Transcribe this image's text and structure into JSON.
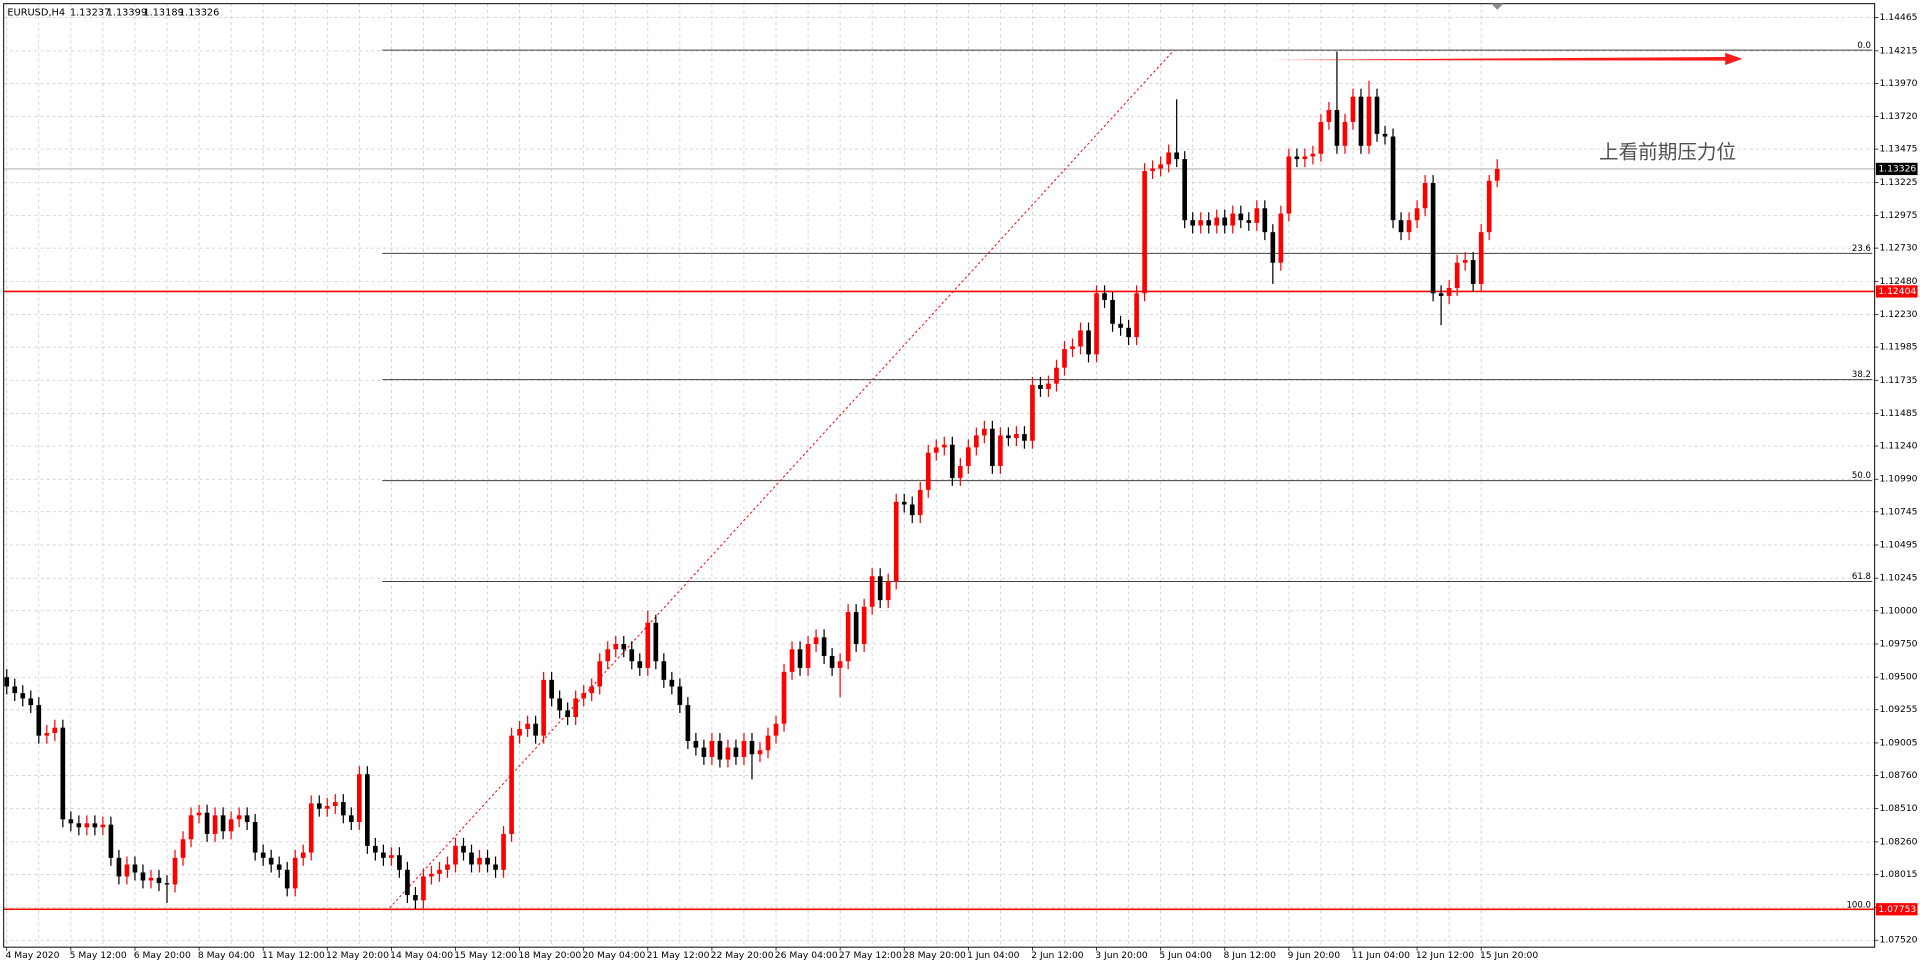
{
  "chart_data": {
    "type": "candlestick",
    "symbol": "EURUSD,H4",
    "annotation": "上看前期压力位",
    "up_color": "#ff0000",
    "down_color": "#000000",
    "grid": true,
    "ylim": [
      1.0744,
      1.1457
    ],
    "yticks": [
      1.14465,
      1.14215,
      {
        "value": 1.1397,
        "label": "1.13970"
      },
      {
        "value": 1.1372,
        "label": "1.13720"
      },
      1.13475,
      1.13225,
      1.12975,
      {
        "value": 1.1273,
        "label": "1.12730"
      },
      {
        "value": 1.1248,
        "label": "1.12480"
      },
      {
        "value": 1.1223,
        "label": "1.12230"
      },
      1.11985,
      1.11735,
      1.11485,
      {
        "value": 1.1124,
        "label": "1.11240"
      },
      {
        "value": 1.1099,
        "label": "1.10990"
      },
      1.10745,
      1.10495,
      1.10245,
      {
        "value": 1.1,
        "label": "1.10000"
      },
      {
        "value": 1.0975,
        "label": "1.09750"
      },
      {
        "value": 1.095,
        "label": "1.09500"
      },
      1.09255,
      1.09005,
      {
        "value": 1.0876,
        "label": "1.08760"
      },
      {
        "value": 1.0851,
        "label": "1.08510"
      },
      {
        "value": 1.0826,
        "label": "1.08260"
      },
      1.08015,
      1.07765,
      {
        "value": 1.0752,
        "label": "1.07520"
      }
    ],
    "fib_levels": [
      {
        "value": 1.1422,
        "label": "0.0"
      },
      {
        "value": 1.1269,
        "label": "23.6"
      },
      {
        "value": 1.1174,
        "label": "38.2"
      },
      {
        "value": 1.1098,
        "label": "50.0"
      },
      {
        "value": 1.1022,
        "label": "61.8"
      },
      {
        "value": 1.0775,
        "label": "100.0"
      }
    ],
    "fib_color": "#404040",
    "red_lines": [
      1.12404,
      1.07753
    ],
    "red_line_color": "#ff0000",
    "categories": [
      "4 May 2020",
      null,
      null,
      null,
      null,
      null,
      null,
      null,
      "5 May 12:00",
      null,
      null,
      null,
      null,
      null,
      null,
      null,
      "6 May 20:00",
      null,
      null,
      null,
      null,
      null,
      null,
      null,
      "8 May 04:00",
      null,
      null,
      null,
      null,
      null,
      null,
      null,
      "11 May 12:00",
      null,
      null,
      null,
      null,
      null,
      null,
      null,
      "12 May 20:00",
      null,
      null,
      null,
      null,
      null,
      null,
      null,
      "14 May 04:00",
      null,
      null,
      null,
      null,
      null,
      null,
      null,
      "15 May 12:00",
      null,
      null,
      null,
      null,
      null,
      null,
      null,
      "18 May 20:00",
      null,
      null,
      null,
      null,
      null,
      null,
      null,
      "20 May 04:00",
      null,
      null,
      null,
      null,
      null,
      null,
      null,
      "21 May 12:00",
      null,
      null,
      null,
      null,
      null,
      null,
      null,
      "22 May 20:00",
      null,
      null,
      null,
      null,
      null,
      null,
      null,
      "26 May 04:00",
      null,
      null,
      null,
      null,
      null,
      null,
      null,
      "27 May 12:00",
      null,
      null,
      null,
      null,
      null,
      null,
      null,
      "28 May 20:00",
      null,
      null,
      null,
      null,
      null,
      null,
      null,
      "1 Jun 04:00",
      null,
      null,
      null,
      null,
      null,
      null,
      null,
      "2 Jun 12:00",
      null,
      null,
      null,
      null,
      null,
      null,
      null,
      "3 Jun 20:00",
      null,
      null,
      null,
      null,
      null,
      null,
      null,
      "5 Jun 04:00",
      null,
      null,
      null,
      null,
      null,
      null,
      null,
      "8 Jun 12:00",
      null,
      null,
      null,
      null,
      null,
      null,
      null,
      "9 Jun 20:00",
      null,
      null,
      null,
      null,
      null,
      null,
      null,
      "11 Jun 04:00",
      null,
      null,
      null,
      null,
      null,
      null,
      null,
      "12 Jun 12:00",
      null,
      null,
      null,
      null,
      null,
      null,
      null,
      "15 Jun 20:00",
      null,
      null
    ],
    "open": [
      1.095,
      1.0943,
      1.0938,
      1.0934,
      1.0929,
      1.0906,
      1.0908,
      1.0912,
      1.0843,
      1.084,
      1.0837,
      1.084,
      1.0837,
      1.0839,
      1.0814,
      1.08,
      1.0809,
      1.0803,
      1.0797,
      1.0799,
      1.0795,
      1.0794,
      1.0814,
      1.0828,
      1.0846,
      1.0848,
      1.0832,
      1.0846,
      1.0834,
      1.0843,
      1.0846,
      1.0841,
      1.0818,
      1.0814,
      1.0809,
      1.0805,
      1.0791,
      1.0814,
      1.0818,
      1.0855,
      1.0851,
      1.0853,
      1.0856,
      1.0846,
      1.0841,
      1.0877,
      1.0823,
      1.0818,
      1.0814,
      1.0816,
      1.0805,
      1.0786,
      1.0782,
      1.08,
      1.0802,
      1.0805,
      1.0809,
      1.0823,
      1.0818,
      1.0809,
      1.0814,
      1.0809,
      1.0805,
      1.0832,
      1.0906,
      1.0911,
      1.0915,
      1.0906,
      1.0948,
      1.0934,
      1.0925,
      1.092,
      1.0934,
      1.0938,
      1.0943,
      1.0962,
      1.0971,
      1.0975,
      1.0971,
      1.0962,
      1.0957,
      1.0991,
      1.0962,
      1.0948,
      1.0943,
      1.0929,
      1.0902,
      1.0897,
      1.089,
      1.0902,
      1.0888,
      1.0897,
      1.089,
      1.0902,
      1.0892,
      1.0895,
      1.0906,
      1.0915,
      1.0954,
      1.0971,
      1.0957,
      1.0975,
      1.098,
      1.0966,
      1.0957,
      1.0962,
      1.0999,
      1.0975,
      1.1003,
      1.1026,
      1.1008,
      1.1022,
      1.1082,
      1.108,
      1.1072,
      1.1091,
      1.1119,
      1.1123,
      1.1125,
      1.11,
      1.1109,
      1.1123,
      1.1132,
      1.1137,
      1.1109,
      1.1132,
      1.113,
      1.1133,
      1.1128,
      1.117,
      1.1167,
      1.1171,
      1.1183,
      1.1197,
      1.1199,
      1.1211,
      1.1193,
      1.1239,
      1.1234,
      1.1216,
      1.1213,
      1.1206,
      1.1239,
      1.1331,
      1.1333,
      1.1336,
      1.1345,
      1.134,
      1.1294,
      1.129,
      1.1294,
      1.129,
      1.1296,
      1.129,
      1.1299,
      1.1294,
      1.1292,
      1.1303,
      1.1285,
      1.1262,
      1.1299,
      1.1342,
      1.134,
      1.1342,
      1.1344,
      1.1368,
      1.1377,
      1.135,
      1.1368,
      1.1387,
      1.135,
      1.1387,
      1.1359,
      1.1357,
      1.1294,
      1.1285,
      1.1294,
      1.1303,
      1.1322,
      1.1239,
      1.1237,
      1.1243,
      1.1262,
      1.1264,
      1.1246,
      1.1285,
      1.13237
    ],
    "high": [
      1.0956,
      1.0949,
      1.0944,
      1.094,
      1.0935,
      1.0914,
      1.0918,
      1.0918,
      1.0849,
      1.0846,
      1.0846,
      1.0846,
      1.0845,
      1.0845,
      1.082,
      1.0815,
      1.0815,
      1.0809,
      1.0805,
      1.0805,
      1.0801,
      1.082,
      1.0834,
      1.0852,
      1.0854,
      1.0854,
      1.0852,
      1.0852,
      1.0849,
      1.0852,
      1.0852,
      1.0847,
      1.0824,
      1.082,
      1.0815,
      1.0811,
      1.082,
      1.0824,
      1.0861,
      1.0861,
      1.0859,
      1.0862,
      1.0862,
      1.0852,
      1.0883,
      1.0883,
      1.0829,
      1.0824,
      1.0822,
      1.0822,
      1.0811,
      1.0792,
      1.0806,
      1.0808,
      1.0811,
      1.0815,
      1.0829,
      1.0829,
      1.0824,
      1.082,
      1.082,
      1.0815,
      1.0838,
      1.0912,
      1.0917,
      1.0921,
      1.0921,
      1.0954,
      1.0954,
      1.094,
      1.0931,
      1.094,
      1.0944,
      1.0949,
      1.0968,
      1.0977,
      1.0981,
      1.0981,
      1.0977,
      1.0968,
      1.1,
      1.0997,
      1.0968,
      1.0954,
      1.0949,
      1.0935,
      1.0908,
      1.0903,
      1.0908,
      1.0908,
      1.0903,
      1.0903,
      1.0908,
      1.0908,
      1.0901,
      1.0912,
      1.0921,
      1.096,
      1.0977,
      1.0977,
      1.0981,
      1.0986,
      1.0986,
      1.0972,
      1.0968,
      1.1005,
      1.1005,
      1.1009,
      1.1032,
      1.1032,
      1.1028,
      1.1088,
      1.1088,
      1.1086,
      1.1097,
      1.1125,
      1.1129,
      1.1131,
      1.1131,
      1.1115,
      1.1129,
      1.1138,
      1.1143,
      1.1143,
      1.1138,
      1.1138,
      1.1139,
      1.1139,
      1.1176,
      1.1176,
      1.1177,
      1.1189,
      1.1203,
      1.1205,
      1.1217,
      1.1217,
      1.1245,
      1.1245,
      1.124,
      1.1222,
      1.1219,
      1.1245,
      1.1337,
      1.1339,
      1.1342,
      1.1351,
      1.1385,
      1.1346,
      1.13,
      1.13,
      1.13,
      1.1302,
      1.1302,
      1.1305,
      1.1305,
      1.13,
      1.1309,
      1.1309,
      1.1291,
      1.1305,
      1.1348,
      1.1348,
      1.1348,
      1.135,
      1.1374,
      1.1383,
      1.1421,
      1.1374,
      1.1393,
      1.1393,
      1.1399,
      1.1393,
      1.1365,
      1.1363,
      1.13,
      1.13,
      1.1309,
      1.1328,
      1.1328,
      1.1245,
      1.1249,
      1.1268,
      1.127,
      1.127,
      1.1291,
      1.1328,
      1.13399
    ],
    "low": [
      1.0937,
      1.0932,
      1.0928,
      1.0923,
      1.09,
      1.09,
      1.0902,
      1.0837,
      1.0834,
      1.0831,
      1.0831,
      1.0831,
      1.0831,
      1.0808,
      1.0794,
      1.0794,
      1.0797,
      1.0791,
      1.0791,
      1.0789,
      1.078,
      1.0788,
      1.0808,
      1.0822,
      1.084,
      1.0826,
      1.0826,
      1.0828,
      1.0828,
      1.0837,
      1.0835,
      1.0812,
      1.0808,
      1.0803,
      1.0799,
      1.0785,
      1.0785,
      1.0808,
      1.0812,
      1.0845,
      1.0845,
      1.0847,
      1.084,
      1.0835,
      1.0835,
      1.0817,
      1.0812,
      1.0808,
      1.0808,
      1.0799,
      1.078,
      1.0775,
      1.0776,
      1.0794,
      1.0796,
      1.0799,
      1.0803,
      1.0812,
      1.0803,
      1.0803,
      1.0803,
      1.0799,
      1.0799,
      1.0826,
      1.09,
      1.0905,
      1.09,
      1.09,
      1.0928,
      1.0919,
      1.0914,
      1.0914,
      1.0928,
      1.0932,
      1.0937,
      1.0956,
      1.0965,
      1.0965,
      1.0956,
      1.0951,
      1.0951,
      1.0956,
      1.0942,
      1.0937,
      1.0923,
      1.0896,
      1.0891,
      1.0884,
      1.0884,
      1.0882,
      1.0882,
      1.0884,
      1.0884,
      1.0873,
      1.0886,
      1.0889,
      1.09,
      1.0909,
      1.0948,
      1.0951,
      1.0951,
      1.0969,
      1.096,
      1.0951,
      1.0935,
      1.0956,
      1.0969,
      1.0969,
      1.0997,
      1.1002,
      1.1002,
      1.1016,
      1.1074,
      1.1066,
      1.1066,
      1.1085,
      1.1113,
      1.1117,
      1.1094,
      1.1094,
      1.1103,
      1.1117,
      1.1126,
      1.1103,
      1.1103,
      1.1124,
      1.1124,
      1.1122,
      1.1122,
      1.1161,
      1.1161,
      1.1165,
      1.1177,
      1.1191,
      1.1193,
      1.1187,
      1.1187,
      1.1228,
      1.121,
      1.1207,
      1.12,
      1.12,
      1.1233,
      1.1325,
      1.1327,
      1.133,
      1.1334,
      1.1288,
      1.1284,
      1.1284,
      1.1284,
      1.1284,
      1.1284,
      1.1284,
      1.1288,
      1.1286,
      1.1286,
      1.1279,
      1.1246,
      1.1256,
      1.1293,
      1.1334,
      1.1334,
      1.1336,
      1.1338,
      1.1362,
      1.1344,
      1.1344,
      1.1362,
      1.1344,
      1.1344,
      1.1353,
      1.1351,
      1.1288,
      1.1279,
      1.1279,
      1.1288,
      1.1297,
      1.1233,
      1.1215,
      1.1231,
      1.1237,
      1.1256,
      1.124,
      1.124,
      1.1279,
      1.13189
    ],
    "close": [
      1.0943,
      1.0938,
      1.0934,
      1.0929,
      1.0906,
      1.0908,
      1.0912,
      1.0843,
      1.084,
      1.0837,
      1.084,
      1.0837,
      1.0839,
      1.0814,
      1.08,
      1.0809,
      1.0803,
      1.0797,
      1.0799,
      1.0795,
      1.0794,
      1.0814,
      1.0828,
      1.0846,
      1.0848,
      1.0832,
      1.0846,
      1.0834,
      1.0843,
      1.0846,
      1.0841,
      1.0818,
      1.0814,
      1.0809,
      1.0805,
      1.0791,
      1.0814,
      1.0818,
      1.0855,
      1.0851,
      1.0853,
      1.0856,
      1.0846,
      1.0841,
      1.0877,
      1.0823,
      1.0818,
      1.0814,
      1.0816,
      1.0805,
      1.0786,
      1.0782,
      1.08,
      1.0802,
      1.0805,
      1.0809,
      1.0823,
      1.0818,
      1.0809,
      1.0814,
      1.0809,
      1.0805,
      1.0832,
      1.0906,
      1.0911,
      1.0915,
      1.0906,
      1.0948,
      1.0934,
      1.0925,
      1.092,
      1.0934,
      1.0938,
      1.0943,
      1.0962,
      1.0971,
      1.0975,
      1.0971,
      1.0962,
      1.0957,
      1.0991,
      1.0962,
      1.0948,
      1.0943,
      1.0929,
      1.0902,
      1.0897,
      1.089,
      1.0902,
      1.0888,
      1.0897,
      1.089,
      1.0902,
      1.0892,
      1.0895,
      1.0906,
      1.0915,
      1.0954,
      1.0971,
      1.0957,
      1.0975,
      1.098,
      1.0966,
      1.0957,
      1.0962,
      1.0999,
      1.0975,
      1.1003,
      1.1026,
      1.1008,
      1.1022,
      1.1082,
      1.108,
      1.1072,
      1.1091,
      1.1119,
      1.1123,
      1.1125,
      1.11,
      1.1109,
      1.1123,
      1.1132,
      1.1137,
      1.1109,
      1.1132,
      1.113,
      1.1133,
      1.1128,
      1.117,
      1.1167,
      1.1171,
      1.1183,
      1.1197,
      1.1199,
      1.1211,
      1.1193,
      1.1239,
      1.1234,
      1.1216,
      1.1213,
      1.1206,
      1.1239,
      1.1331,
      1.1333,
      1.1336,
      1.1345,
      1.134,
      1.1294,
      1.129,
      1.1294,
      1.129,
      1.1296,
      1.129,
      1.1299,
      1.1294,
      1.1292,
      1.1303,
      1.1285,
      1.1262,
      1.1299,
      1.1342,
      1.134,
      1.1342,
      1.1344,
      1.1368,
      1.1377,
      1.135,
      1.1368,
      1.1387,
      1.135,
      1.1387,
      1.1359,
      1.1357,
      1.1294,
      1.1285,
      1.1294,
      1.1303,
      1.1322,
      1.1239,
      1.1237,
      1.1243,
      1.1262,
      1.1264,
      1.1246,
      1.1285,
      1.13237,
      1.13326
    ]
  }
}
